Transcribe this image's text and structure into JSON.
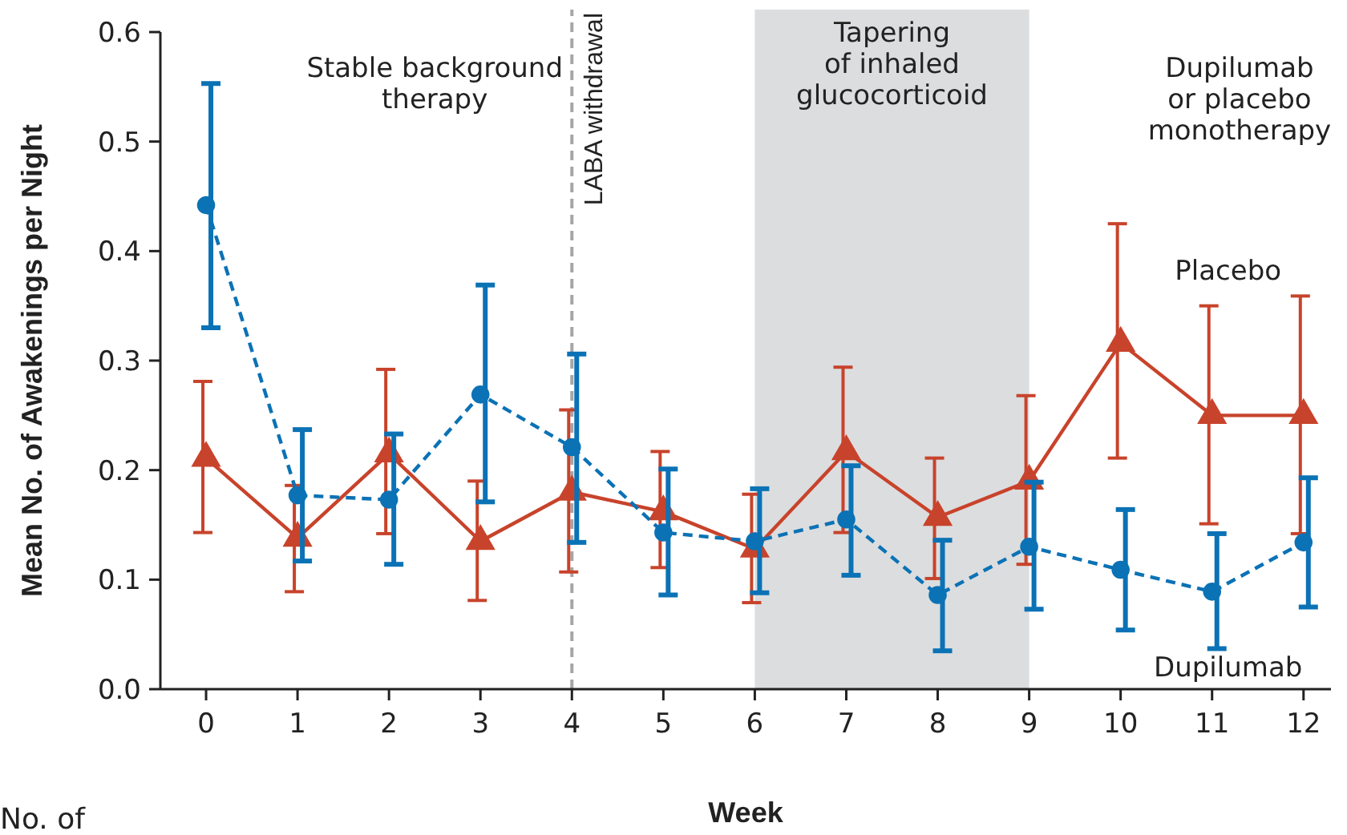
{
  "chart_data": {
    "type": "line",
    "xlabel": "Week",
    "ylabel": "Mean No. of Awakenings per Night",
    "x": [
      0,
      1,
      2,
      3,
      4,
      5,
      6,
      7,
      8,
      9,
      10,
      11,
      12
    ],
    "xlim": [
      -0.5,
      12.3
    ],
    "xticks": [
      0,
      1,
      2,
      3,
      4,
      5,
      6,
      7,
      8,
      9,
      10,
      11,
      12
    ],
    "ylim": [
      0,
      0.6
    ],
    "yticks": [
      {
        "value": 0,
        "label": "0.0"
      },
      0.1,
      0.2,
      0.3,
      0.4,
      0.5,
      0.6
    ],
    "grid": false,
    "legend": false,
    "series": [
      {
        "name": "Placebo",
        "color": "#c8432b",
        "marker": "triangle",
        "line_style": "solid",
        "values": [
          0.211,
          0.138,
          0.215,
          0.135,
          0.18,
          0.162,
          0.128,
          0.217,
          0.157,
          0.19,
          0.316,
          0.25,
          0.25
        ],
        "errors": [
          [
            0.143,
            0.281
          ],
          [
            0.089,
            0.186
          ],
          [
            0.142,
            0.292
          ],
          [
            0.081,
            0.19
          ],
          [
            0.107,
            0.255
          ],
          [
            0.111,
            0.217
          ],
          [
            0.079,
            0.178
          ],
          [
            0.143,
            0.294
          ],
          [
            0.101,
            0.211
          ],
          [
            0.114,
            0.268
          ],
          [
            0.211,
            0.425
          ],
          [
            0.151,
            0.35
          ],
          [
            0.142,
            0.359
          ]
        ]
      },
      {
        "name": "Dupilumab",
        "color": "#0b72b5",
        "marker": "circle",
        "line_style": "dashed",
        "values": [
          0.442,
          0.177,
          0.173,
          0.269,
          0.221,
          0.143,
          0.135,
          0.155,
          0.086,
          0.13,
          0.109,
          0.089,
          0.134
        ],
        "errors": [
          [
            0.33,
            0.553
          ],
          [
            0.117,
            0.237
          ],
          [
            0.114,
            0.233
          ],
          [
            0.171,
            0.369
          ],
          [
            0.134,
            0.306
          ],
          [
            0.086,
            0.201
          ],
          [
            0.088,
            0.183
          ],
          [
            0.104,
            0.204
          ],
          [
            0.035,
            0.136
          ],
          [
            0.073,
            0.189
          ],
          [
            0.054,
            0.164
          ],
          [
            0.037,
            0.142
          ],
          [
            0.075,
            0.193
          ]
        ]
      }
    ],
    "ref_lines": [
      {
        "axis": "x",
        "value": 4,
        "label": "LABA withdrawal",
        "color": "#a6a6a6",
        "line_style": "dashed"
      }
    ],
    "bands": [
      {
        "axis": "x",
        "from": 6,
        "to": 9,
        "label": "Tapering\nof inhaled\nglucocorticoid",
        "color": "#dcdddf"
      }
    ],
    "annotations": [
      "Stable background\ntherapy",
      "Dupilumab\nor placebo\nmonotherapy",
      "No. of"
    ]
  }
}
